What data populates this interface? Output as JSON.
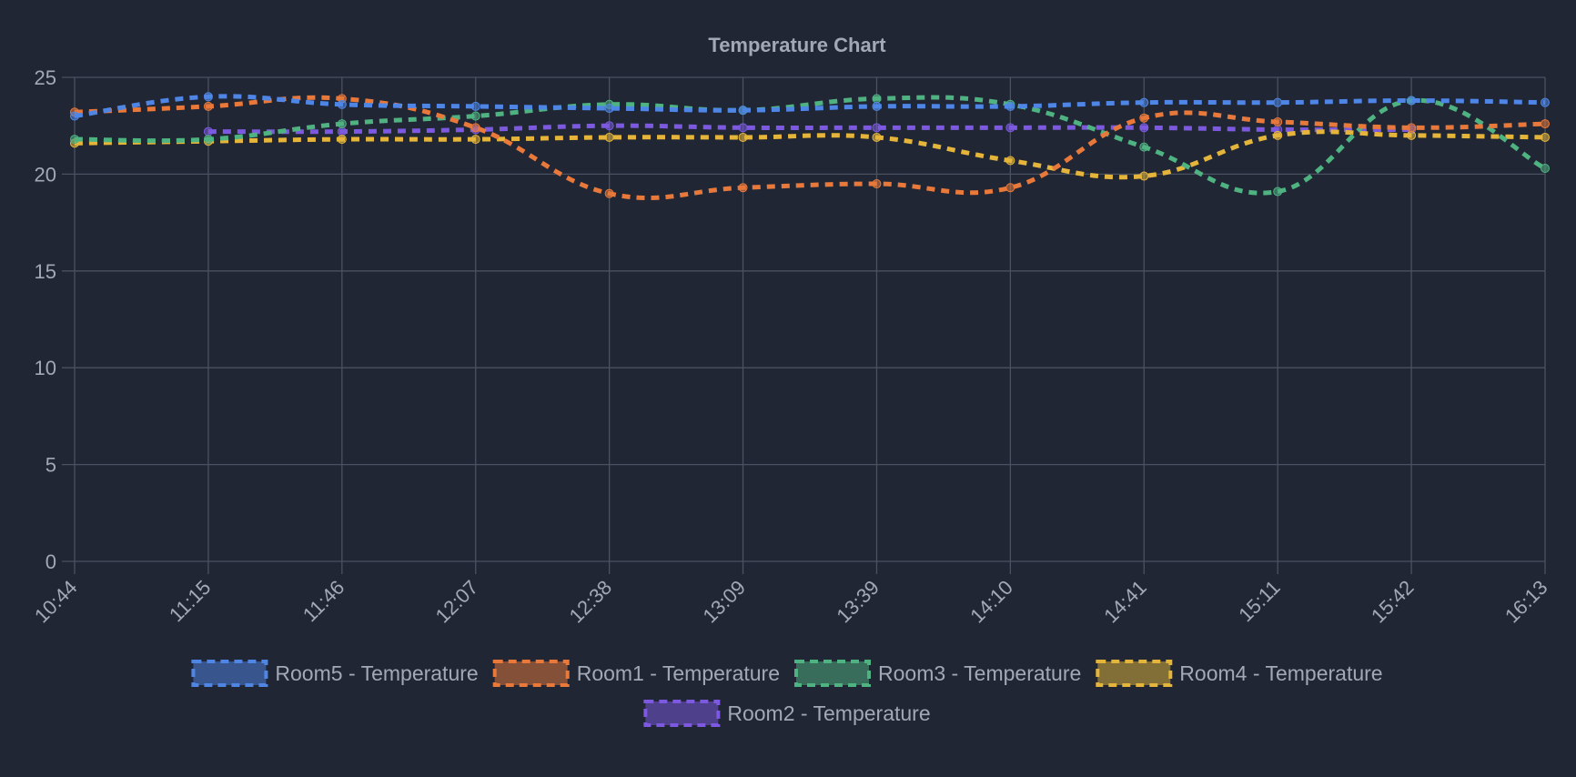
{
  "chart_data": {
    "type": "line",
    "title": "Temperature Chart",
    "xlabel": "",
    "ylabel": "",
    "x": [
      "10:44",
      "11:15",
      "11:46",
      "12:07",
      "12:38",
      "13:09",
      "13:39",
      "14:10",
      "14:41",
      "15:11",
      "15:42",
      "16:13"
    ],
    "ylim": [
      0,
      25
    ],
    "yticks": [
      0,
      5,
      10,
      15,
      20,
      25
    ],
    "grid": true,
    "legend_position": "bottom",
    "line_style": "dashed",
    "series": [
      {
        "name": "Room5 - Temperature",
        "color": "#4f86e6",
        "values": [
          23.0,
          24.0,
          23.6,
          23.5,
          23.4,
          23.3,
          23.5,
          23.5,
          23.7,
          23.7,
          23.8,
          23.7
        ]
      },
      {
        "name": "Room1 - Temperature",
        "color": "#e8793a",
        "values": [
          23.2,
          23.5,
          23.9,
          22.4,
          19.0,
          19.3,
          19.5,
          19.3,
          22.9,
          22.7,
          22.4,
          22.6
        ]
      },
      {
        "name": "Room3 - Temperature",
        "color": "#4fb381",
        "values": [
          21.8,
          21.8,
          22.6,
          23.0,
          23.6,
          23.3,
          23.9,
          23.6,
          21.4,
          19.1,
          23.8,
          20.3
        ]
      },
      {
        "name": "Room4 - Temperature",
        "color": "#e4b53a",
        "values": [
          21.6,
          21.7,
          21.8,
          21.8,
          21.9,
          21.9,
          21.9,
          20.7,
          19.9,
          22.0,
          22.0,
          21.9
        ]
      },
      {
        "name": "Room2 - Temperature",
        "color": "#7c59e0",
        "values": [
          null,
          22.2,
          22.2,
          22.3,
          22.5,
          22.4,
          22.4,
          22.4,
          22.4,
          22.3,
          22.3,
          null
        ]
      }
    ]
  }
}
